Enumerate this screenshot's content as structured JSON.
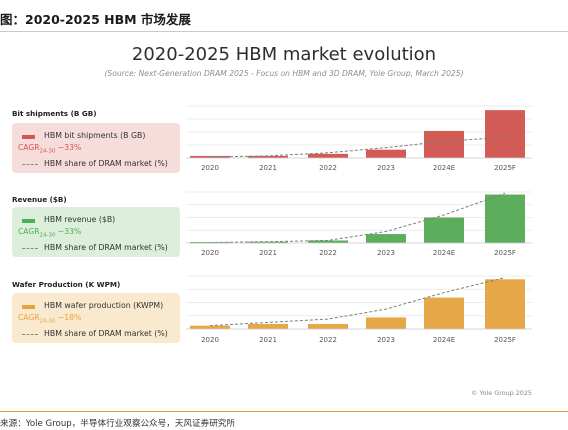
{
  "caption": "图：2020-2025 HBM 市场发展",
  "title": "2020-2025 HBM market evolution",
  "subtitle": "(Source: Next-Generation DRAM 2025 - Focus on HBM and 3D DRAM, Yole Group, March 2025)",
  "copyright": "© Yole Group 2025",
  "source": "来源：Yole Group，半导体行业观察公众号，天风证券研究所",
  "panels": [
    {
      "title": "Bit shipments (B GB)",
      "bar_label": "HBM bit shipments (B GB)",
      "cagr_prefix": "CAGR",
      "cagr_sub": "24-30",
      "cagr_value": " ~33%",
      "share_label": "HBM share of DRAM market (%)",
      "bar_color": "#d9534f",
      "bar_fill_color": "#d25c55",
      "bg_color": "#f7dcdc",
      "cagr_color": "#d9534f"
    },
    {
      "title": "Revenue ($B)",
      "bar_label": "HBM revenue ($B)",
      "cagr_prefix": "CAGR",
      "cagr_sub": "24-30",
      "cagr_value": " ~33%",
      "share_label": "HBM share of DRAM market (%)",
      "bar_color": "#4caf50",
      "bar_fill_color": "#5cad5c",
      "bg_color": "#dcefdc",
      "cagr_color": "#4caf50"
    },
    {
      "title": "Wafer Production (K WPM)",
      "bar_label": "HBM wafer production (KWPM)",
      "cagr_prefix": "CAGR",
      "cagr_sub": "24-30",
      "cagr_value": " ~18%",
      "share_label": "HBM share of DRAM market (%)",
      "bar_color": "#e8a33d",
      "bar_fill_color": "#e6a748",
      "bg_color": "#f9e9cf",
      "cagr_color": "#e8a33d"
    }
  ],
  "chart_data": [
    {
      "type": "bar",
      "title": "Bit shipments (B GB)",
      "categories": [
        "2020",
        "2021",
        "2022",
        "2023",
        "2024E",
        "2025F"
      ],
      "series": [
        {
          "name": "HBM bit shipments (B GB)",
          "values": [
            0.1,
            0.1,
            0.2,
            0.4,
            1.3,
            2.3
          ]
        },
        {
          "name": "HBM share of DRAM market (%)",
          "values": [
            0.05,
            0.1,
            0.25,
            0.5,
            0.8,
            1.0
          ],
          "style": "dashed-line"
        }
      ],
      "ylim": [
        0,
        2.5
      ],
      "grid": true,
      "note": "values estimated; axis values not printed"
    },
    {
      "type": "bar",
      "title": "Revenue ($B)",
      "categories": [
        "2020",
        "2021",
        "2022",
        "2023",
        "2024E",
        "2025F"
      ],
      "series": [
        {
          "name": "HBM revenue ($B)",
          "values": [
            0.04,
            0.05,
            0.1,
            0.35,
            1.0,
            1.9
          ]
        },
        {
          "name": "HBM share of DRAM market (%)",
          "values": [
            0.02,
            0.05,
            0.1,
            0.45,
            1.1,
            1.95
          ],
          "style": "dashed-line"
        }
      ],
      "ylim": [
        0,
        2.0
      ],
      "grid": true
    },
    {
      "type": "bar",
      "title": "Wafer Production (K WPM)",
      "categories": [
        "2020",
        "2021",
        "2022",
        "2023",
        "2024E",
        "2025F"
      ],
      "series": [
        {
          "name": "HBM wafer production (KWPM)",
          "values": [
            0.1,
            0.15,
            0.15,
            0.35,
            0.95,
            1.5
          ]
        },
        {
          "name": "HBM share of DRAM market (%)",
          "values": [
            0.1,
            0.2,
            0.3,
            0.6,
            1.1,
            1.55
          ],
          "style": "dashed-line"
        }
      ],
      "ylim": [
        0,
        1.6
      ],
      "grid": true
    }
  ]
}
